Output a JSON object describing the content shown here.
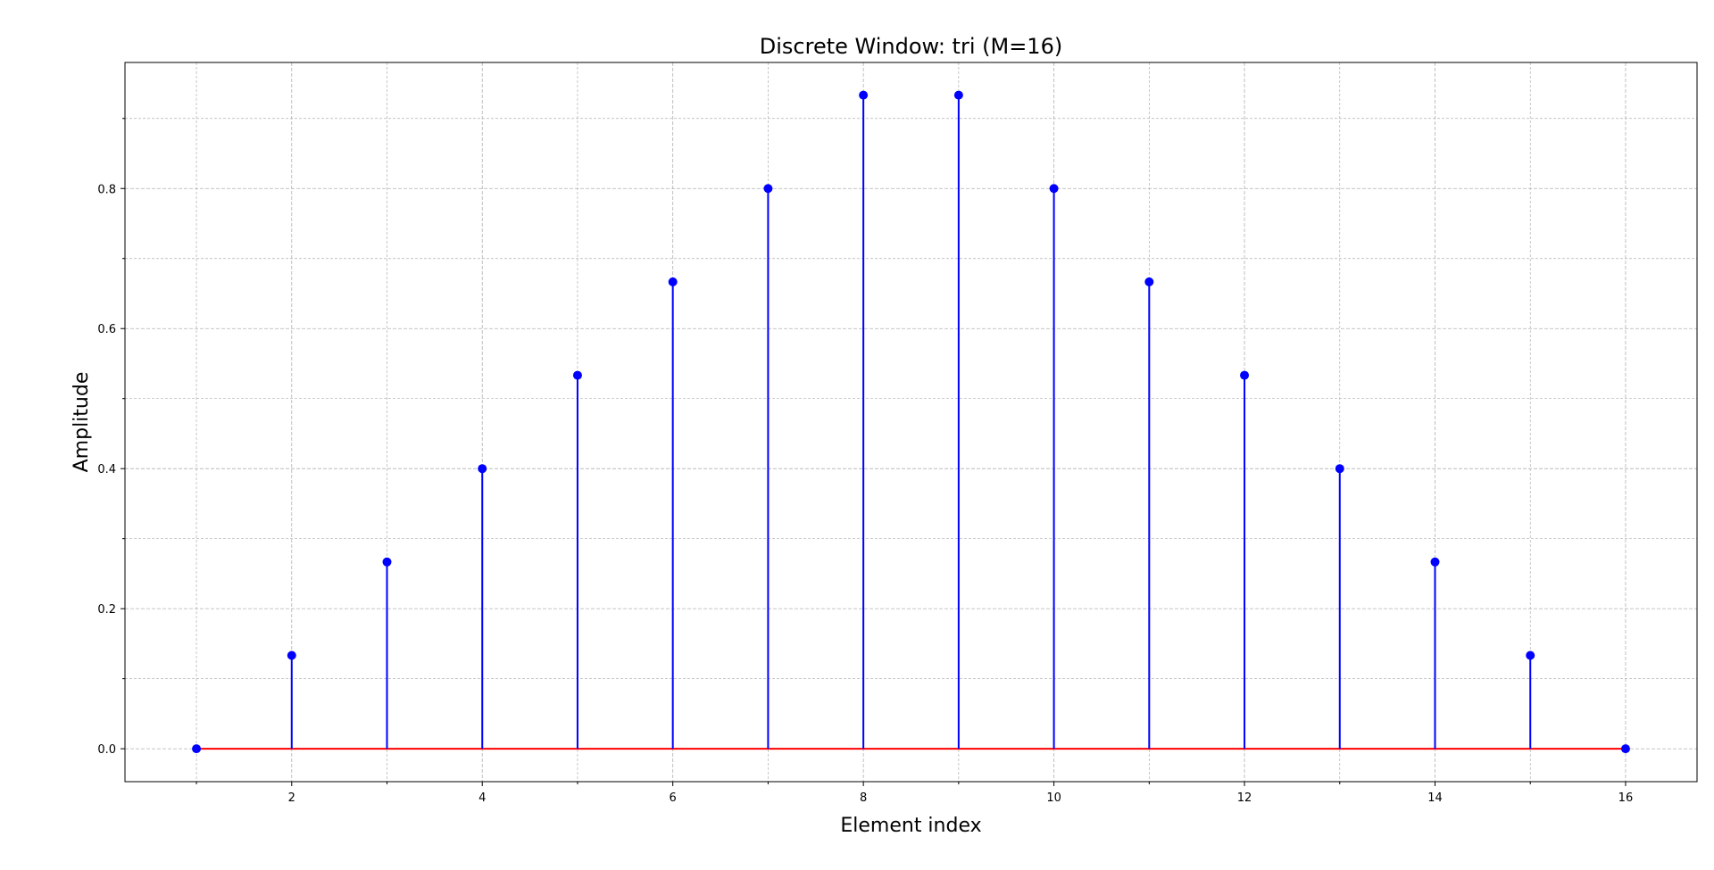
{
  "chart_data": {
    "type": "stem",
    "title": "Discrete Window: tri (M=16)",
    "xlabel": "Element index",
    "ylabel": "Amplitude",
    "x": [
      1,
      2,
      3,
      4,
      5,
      6,
      7,
      8,
      9,
      10,
      11,
      12,
      13,
      14,
      15,
      16
    ],
    "values": [
      0.0,
      0.1333,
      0.2667,
      0.4,
      0.5333,
      0.6667,
      0.8,
      0.9333,
      0.9333,
      0.8,
      0.6667,
      0.5333,
      0.4,
      0.2667,
      0.1333,
      0.0
    ],
    "xlim": [
      0.25,
      16.75
    ],
    "ylim": [
      -0.047,
      0.98
    ],
    "xticks": [
      2,
      4,
      6,
      8,
      10,
      12,
      14,
      16
    ],
    "xticks_minor": [
      1,
      3,
      5,
      7,
      9,
      11,
      13,
      15
    ],
    "yticks": [
      0.0,
      0.2,
      0.4,
      0.6,
      0.8
    ],
    "yticks_minor": [
      0.1,
      0.3,
      0.5,
      0.7,
      0.9
    ],
    "ytick_labels": [
      "0.0",
      "0.2",
      "0.4",
      "0.6",
      "0.8"
    ],
    "grid": true,
    "minor_grid": true,
    "colors": {
      "stem": "#0000ff",
      "marker": "#0000ff",
      "baseline": "#ff0000",
      "grid": "#b0b0b0"
    }
  }
}
